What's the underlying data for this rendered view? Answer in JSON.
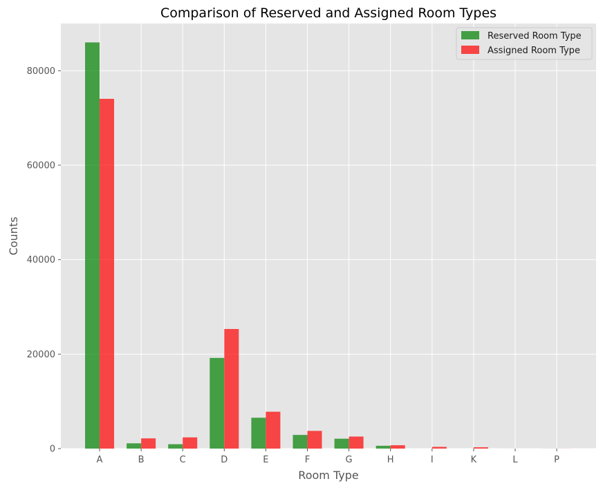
{
  "chart_data": {
    "type": "bar",
    "title": "Comparison of Reserved and Assigned Room Types",
    "xlabel": "Room Type",
    "ylabel": "Counts",
    "categories": [
      "A",
      "B",
      "C",
      "D",
      "E",
      "F",
      "G",
      "H",
      "I",
      "K",
      "L",
      "P"
    ],
    "ylim": [
      0,
      90000
    ],
    "yticks": [
      0,
      20000,
      40000,
      60000,
      80000
    ],
    "grid": true,
    "legend_position": "top-right",
    "series": [
      {
        "name": "Reserved Room Type",
        "color": "#008000",
        "values": [
          85994,
          1118,
          932,
          19201,
          6535,
          2897,
          2094,
          601,
          0,
          0,
          6,
          12
        ]
      },
      {
        "name": "Assigned Room Type",
        "color": "#ff0000",
        "values": [
          74053,
          2163,
          2375,
          25322,
          7806,
          3751,
          2553,
          712,
          365,
          279,
          1,
          12
        ]
      }
    ],
    "bar_opacity": 0.7,
    "background": "#e5e5e5"
  }
}
